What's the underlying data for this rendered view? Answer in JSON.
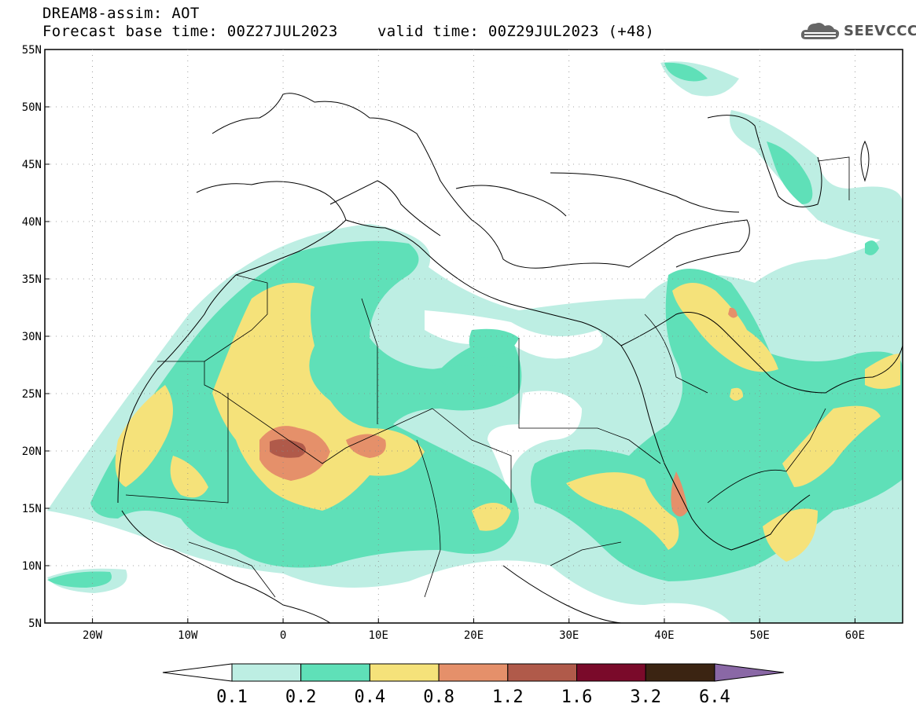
{
  "header": {
    "title": "DREAM8-assim: AOT",
    "base_time": "Forecast base time: 00Z27JUL2023",
    "valid_time": "valid time: 00Z29JUL2023 (+48)",
    "logo": "SEEVCCC"
  },
  "map": {
    "lat_labels": [
      "55N",
      "50N",
      "45N",
      "40N",
      "35N",
      "30N",
      "25N",
      "20N",
      "15N",
      "10N",
      "5N"
    ],
    "lon_labels": [
      "20W",
      "10W",
      "0",
      "10E",
      "20E",
      "30E",
      "40E",
      "50E",
      "60E"
    ],
    "lat_range": [
      5,
      55
    ],
    "lon_range": [
      -25,
      65
    ]
  },
  "colorbar": {
    "levels": [
      "0.1",
      "0.2",
      "0.4",
      "0.8",
      "1.2",
      "1.6",
      "3.2",
      "6.4"
    ],
    "colors": [
      "#bdeee3",
      "#5fe0b8",
      "#f5e27a",
      "#e5906a",
      "#b05a4a",
      "#7a0a2a",
      "#3b2412",
      "#8a68a6"
    ]
  }
}
